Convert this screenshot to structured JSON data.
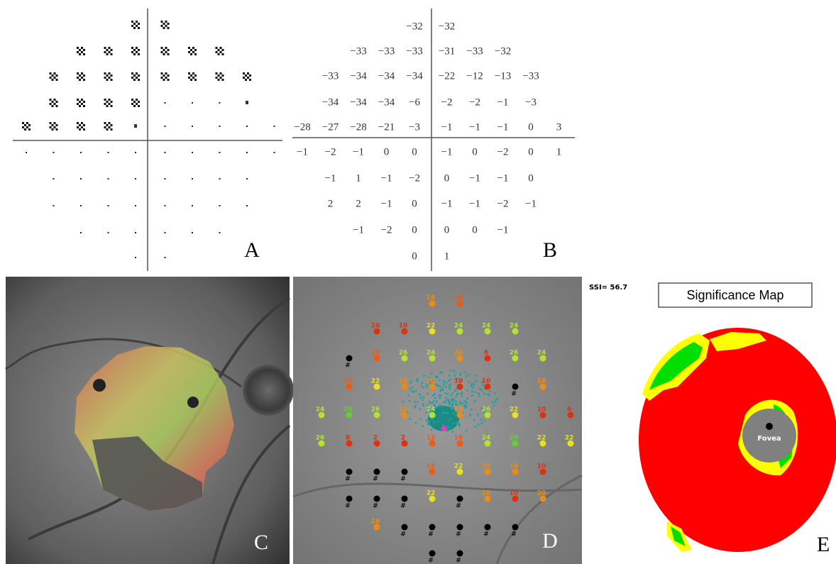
{
  "panel_a": {
    "label": "A"
  },
  "panel_b": {
    "label": "B",
    "rows": [
      [
        null,
        null,
        null,
        null,
        "−32",
        "−32",
        null,
        null,
        null,
        null
      ],
      [
        null,
        null,
        "−33",
        "−33",
        "−33",
        "−31",
        "−33",
        "−32",
        null,
        null
      ],
      [
        null,
        "−33",
        "−34",
        "−34",
        "−34",
        "−22",
        "−12",
        "−13",
        "−33",
        null
      ],
      [
        null,
        "−34",
        "−34",
        "−34",
        "−6",
        "−2",
        "−2",
        "−1",
        "−3",
        null
      ],
      [
        "−28",
        "−27",
        "−28",
        "−21",
        "−3",
        "−1",
        "−1",
        "−1",
        "0",
        "3"
      ],
      [
        "−1",
        "−2",
        "−1",
        "0",
        "0",
        "−1",
        "0",
        "−2",
        "0",
        "1"
      ],
      [
        null,
        "−1",
        "1",
        "−1",
        "−2",
        "0",
        "−1",
        "−1",
        "0",
        null
      ],
      [
        null,
        "2",
        "2",
        "−1",
        "0",
        "−1",
        "−1",
        "−2",
        "−1",
        null
      ],
      [
        null,
        null,
        "−1",
        "−2",
        "0",
        "0",
        "0",
        "−1",
        null,
        null
      ],
      [
        null,
        null,
        null,
        null,
        "0",
        "1",
        null,
        null,
        null,
        null
      ]
    ]
  },
  "panel_c": {
    "label": "C"
  },
  "panel_d": {
    "label": "D",
    "rows": [
      [
        null,
        null,
        null,
        null,
        "18",
        "14",
        null,
        null,
        null,
        null
      ],
      [
        null,
        null,
        "10",
        "10",
        "22",
        "24",
        "24",
        "24",
        null,
        null
      ],
      [
        null,
        "#",
        "16",
        "26",
        "24",
        "20",
        "6",
        "26",
        "24",
        null
      ],
      [
        null,
        "14",
        "22",
        "18",
        "20",
        "10",
        "10",
        "#",
        "18",
        null
      ],
      [
        "24",
        "28",
        "26",
        "18",
        "24",
        "18",
        "26",
        "22",
        "10",
        "6"
      ],
      [
        "26",
        "8",
        "2",
        "2",
        "12",
        "16",
        "24",
        "28",
        "22",
        "22"
      ],
      [
        null,
        "#",
        "#",
        "#",
        "16",
        "22",
        "20",
        "18",
        "10",
        null
      ],
      [
        null,
        "#",
        "#",
        "#",
        "22",
        "#",
        "20",
        "10",
        "20",
        null
      ],
      [
        null,
        null,
        "18",
        "#",
        "#",
        "#",
        "#",
        "#",
        null,
        null
      ],
      [
        null,
        null,
        null,
        null,
        "#",
        "#",
        null,
        null,
        null,
        null
      ]
    ]
  },
  "panel_e": {
    "label": "E",
    "ssi": "SSI= 56.7",
    "title": "Significance Map",
    "fovea": "Fovea"
  }
}
